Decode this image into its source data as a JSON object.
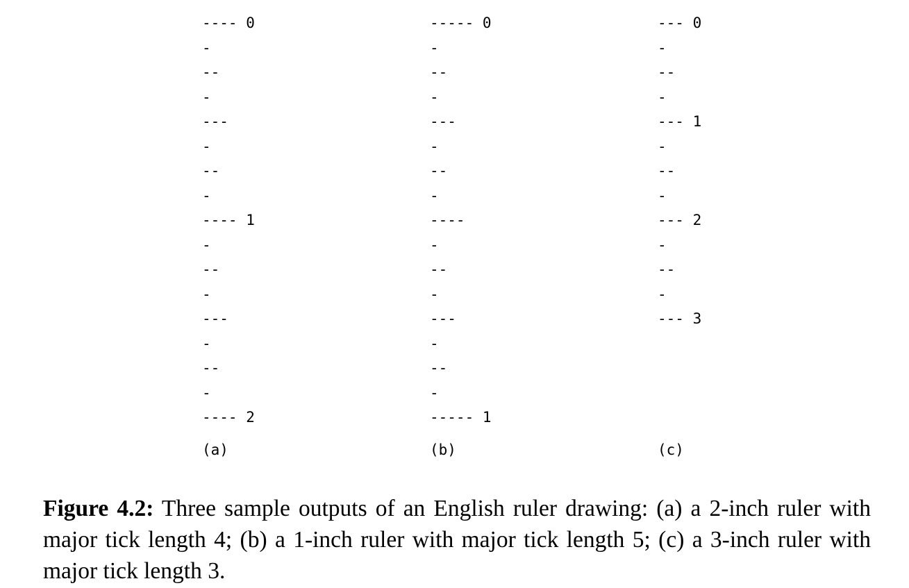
{
  "figure": {
    "rulers": [
      {
        "id": "a",
        "caption": "(a)",
        "lines": [
          "---- 0",
          "-",
          "--",
          "-",
          "---",
          "-",
          "--",
          "-",
          "---- 1",
          "-",
          "--",
          "-",
          "---",
          "-",
          "--",
          "-",
          "---- 2"
        ]
      },
      {
        "id": "b",
        "caption": "(b)",
        "lines": [
          "----- 0",
          "-",
          "--",
          "-",
          "---",
          "-",
          "--",
          "-",
          "----",
          "-",
          "--",
          "-",
          "---",
          "-",
          "--",
          "-",
          "----- 1"
        ]
      },
      {
        "id": "c",
        "caption": "(c)",
        "lines": [
          "--- 0",
          "-",
          "--",
          "-",
          "--- 1",
          "-",
          "--",
          "-",
          "--- 2",
          "-",
          "--",
          "-",
          "--- 3"
        ]
      }
    ],
    "caption_label": "Figure 4.2:",
    "caption_text": " Three sample outputs of an English ruler drawing: (a) a 2-inch ruler with major tick length 4; (b) a 1-inch ruler with major tick length 5; (c) a 3-inch ruler with major tick length 3."
  }
}
